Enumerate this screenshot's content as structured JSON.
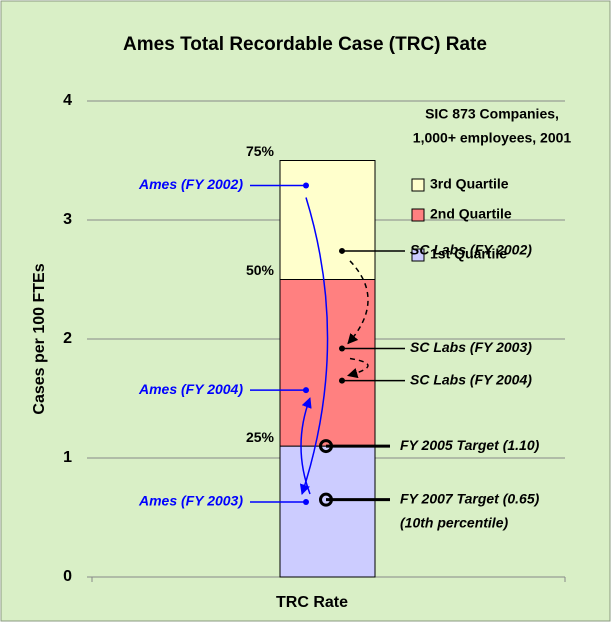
{
  "chart_data": {
    "type": "stacked_bar",
    "title": "Ames Total Recordable Case (TRC) Rate",
    "ylabel": "Cases per 100 FTEs",
    "categories": [
      "TRC Rate"
    ],
    "series": [
      {
        "name": "1st Quartile",
        "color": "#ccccff",
        "values": [
          1.1
        ]
      },
      {
        "name": "2nd Quartile",
        "color": "#ff8080",
        "values": [
          1.4
        ]
      },
      {
        "name": "3rd Quartile",
        "color": "#ffffcc",
        "values": [
          1.0
        ]
      }
    ],
    "legend_title": [
      "SIC 873 Companies,",
      "1,000+ employees, 2001"
    ],
    "quartile_marks": [
      {
        "value": 1.1,
        "label": "25%"
      },
      {
        "value": 2.5,
        "label": "50%"
      },
      {
        "value": 3.5,
        "label": "75%"
      }
    ],
    "ames": [
      {
        "label": "Ames (FY 2002)",
        "value": 3.29,
        "color": "#0000ff"
      },
      {
        "label": "Ames (FY 2003)",
        "value": 0.63,
        "color": "#0000ff"
      },
      {
        "label": "Ames (FY 2004)",
        "value": 1.57,
        "color": "#0000ff"
      }
    ],
    "sc_labs": [
      {
        "label": "SC Labs (FY 2002)",
        "value": 2.74
      },
      {
        "label": "SC Labs (FY 2003)",
        "value": 1.92
      },
      {
        "label": "SC Labs (FY 2004)",
        "value": 1.65
      }
    ],
    "targets": [
      {
        "label": [
          "FY 2005 Target (1.10)"
        ],
        "value": 1.1
      },
      {
        "label": [
          "FY 2007 Target (0.65)",
          "(10th percentile)"
        ],
        "value": 0.65
      }
    ],
    "ylim": [
      0,
      4
    ],
    "yticks": [
      0,
      1,
      2,
      3,
      4
    ],
    "grid": true
  }
}
